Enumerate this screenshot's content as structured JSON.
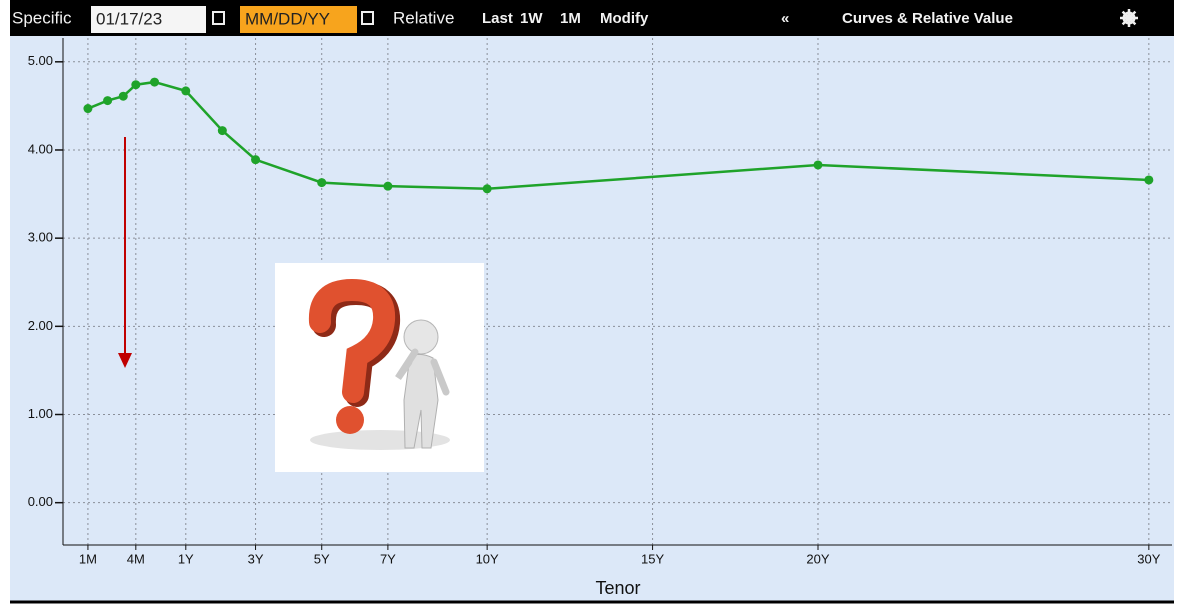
{
  "toolbar": {
    "specific": "Specific",
    "date": "01/17/23",
    "date_format": "MM/DD/YY",
    "relative": "Relative",
    "last": "Last",
    "one_week": "1W",
    "one_month": "1M",
    "modify": "Modify",
    "collapse": "«",
    "title": "Curves & Relative Value"
  },
  "chart_data": {
    "type": "line",
    "x_label": "Tenor",
    "x": [
      0.0833,
      0.1667,
      0.25,
      0.3333,
      0.5,
      1,
      2,
      3,
      5,
      7,
      10,
      20,
      30
    ],
    "series": [
      {
        "color": "#1fa32a",
        "values": [
          4.47,
          4.56,
          4.61,
          4.74,
          4.77,
          4.67,
          4.22,
          3.89,
          3.63,
          3.59,
          3.56,
          3.83,
          3.66
        ]
      }
    ],
    "xlim": [
      0,
      30.7
    ],
    "xticks": [
      {
        "value": 0.0833,
        "label": "1M"
      },
      {
        "value": 0.3333,
        "label": "4M"
      },
      {
        "value": 1,
        "label": "1Y"
      },
      {
        "value": 3,
        "label": "3Y"
      },
      {
        "value": 5,
        "label": "5Y"
      },
      {
        "value": 7,
        "label": "7Y"
      },
      {
        "value": 10,
        "label": "10Y"
      },
      {
        "value": 15,
        "label": "15Y"
      },
      {
        "value": 20,
        "label": "20Y"
      },
      {
        "value": 30,
        "label": "30Y"
      }
    ],
    "ylim": [
      -0.48,
      5.27
    ],
    "yticks": [
      {
        "value": 0,
        "label": "0.00"
      },
      {
        "value": 1,
        "label": "1.00"
      },
      {
        "value": 2,
        "label": "2.00"
      },
      {
        "value": 3,
        "label": "3.00"
      },
      {
        "value": 4,
        "label": "4.00"
      },
      {
        "value": 5,
        "label": "5.00"
      }
    ],
    "grid": true
  }
}
